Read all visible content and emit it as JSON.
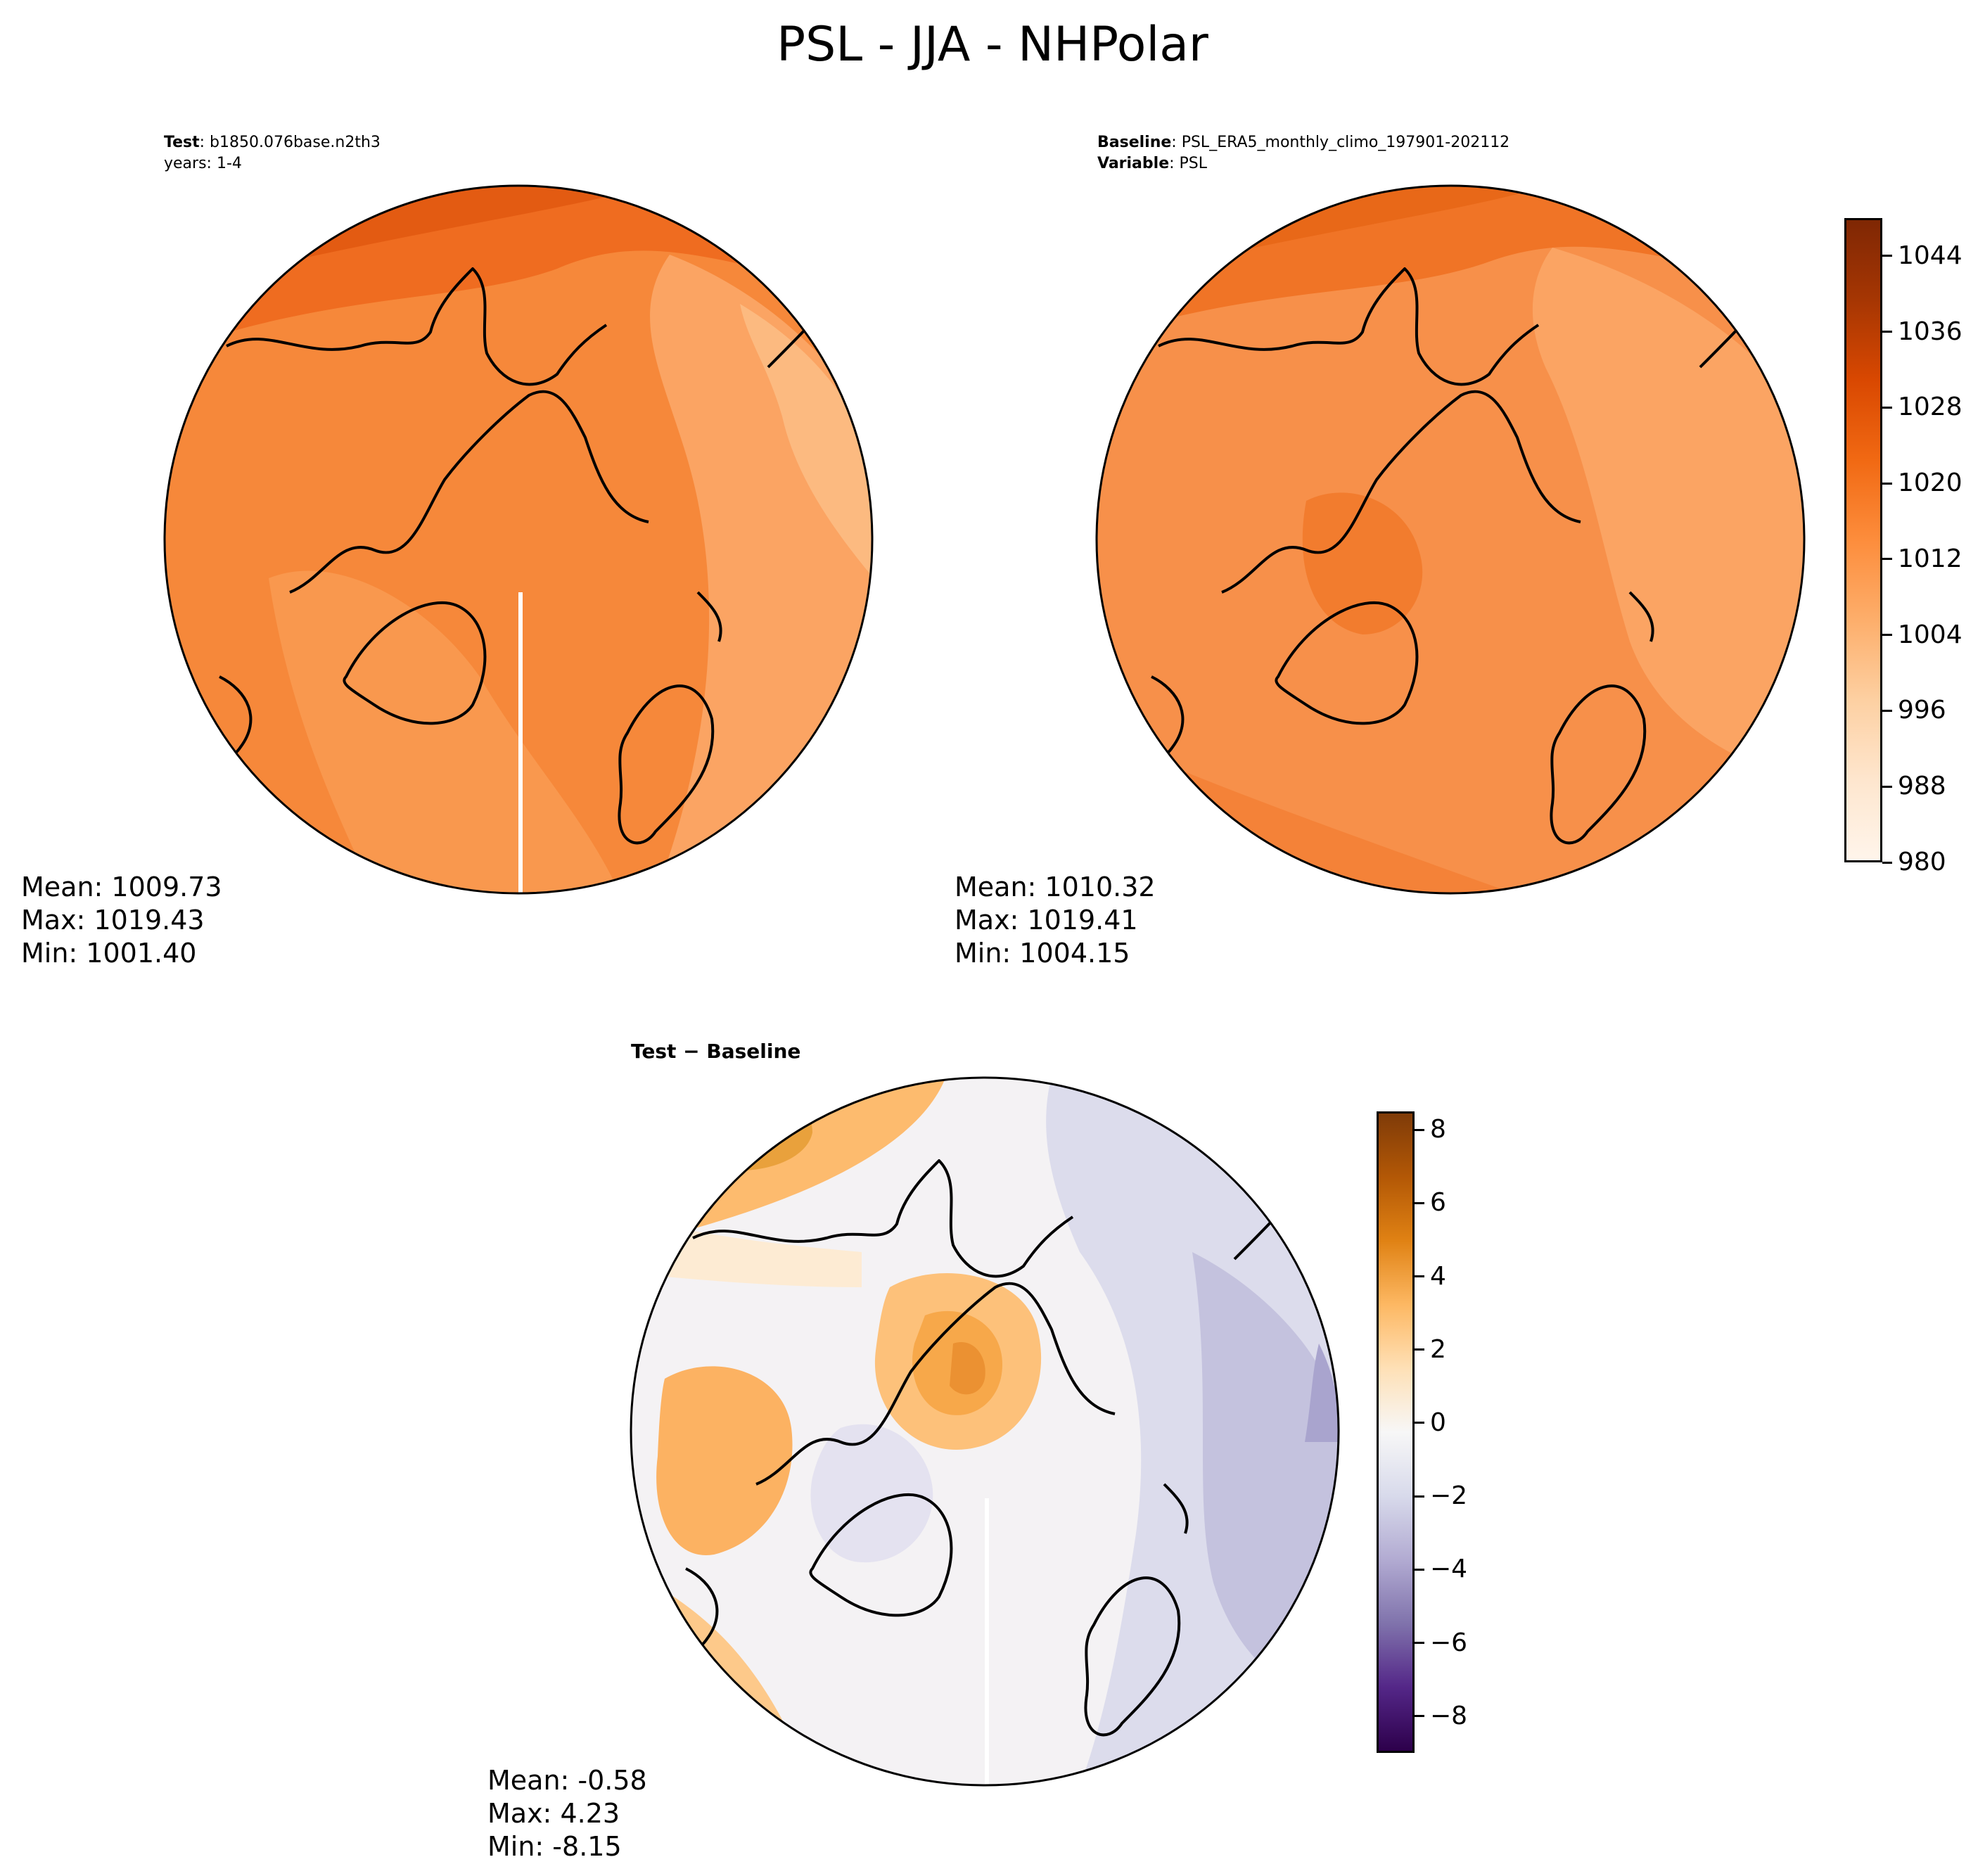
{
  "title": "PSL - JJA - NHPolar",
  "test_panel": {
    "label_bold": "Test",
    "label_text": ": b1850.076base.n2th3",
    "line2": "years: 1-4",
    "stats": {
      "mean": "Mean: 1009.73",
      "max": "Max: 1019.43",
      "min": "Min: 1001.40"
    }
  },
  "baseline_panel": {
    "label_bold": "Baseline",
    "label_text": ": PSL_ERA5_monthly_climo_197901-202112",
    "line2_bold": "Variable",
    "line2_text": ": PSL",
    "stats": {
      "mean": "Mean: 1010.32",
      "max": "Max: 1019.41",
      "min": "Min: 1004.15"
    }
  },
  "diff_panel": {
    "title": "Test − Baseline",
    "stats": {
      "mean": "Mean: -0.58",
      "max": "Max:  4.23",
      "min": "Min: -8.15"
    }
  },
  "colorbar_psl": {
    "range": [
      980,
      1048
    ],
    "ticks": [
      980,
      988,
      996,
      1004,
      1012,
      1020,
      1028,
      1036,
      1044
    ],
    "tick_labels": [
      "980",
      "988",
      "996",
      "1004",
      "1012",
      "1020",
      "1028",
      "1036",
      "1044"
    ],
    "colormap": "Oranges",
    "colors": [
      "#fff5eb",
      "#fee6ce",
      "#fdd0a2",
      "#fdae6b",
      "#fd8d3c",
      "#f16913",
      "#d94801",
      "#a63603",
      "#7f2704"
    ]
  },
  "colorbar_diff": {
    "range": [
      -9,
      8.5
    ],
    "ticks": [
      8,
      6,
      4,
      2,
      0,
      -2,
      -4,
      -6,
      -8
    ],
    "tick_labels": [
      "8",
      "6",
      "4",
      "2",
      "0",
      "−2",
      "−4",
      "−6",
      "−8"
    ],
    "colormap": "PuOr_r",
    "colors": [
      "#2d004b",
      "#542788",
      "#8073ac",
      "#b2abd2",
      "#d8daeb",
      "#f7f7f7",
      "#fee0b6",
      "#fdb863",
      "#e08214",
      "#b35806",
      "#7f3b08"
    ]
  }
}
